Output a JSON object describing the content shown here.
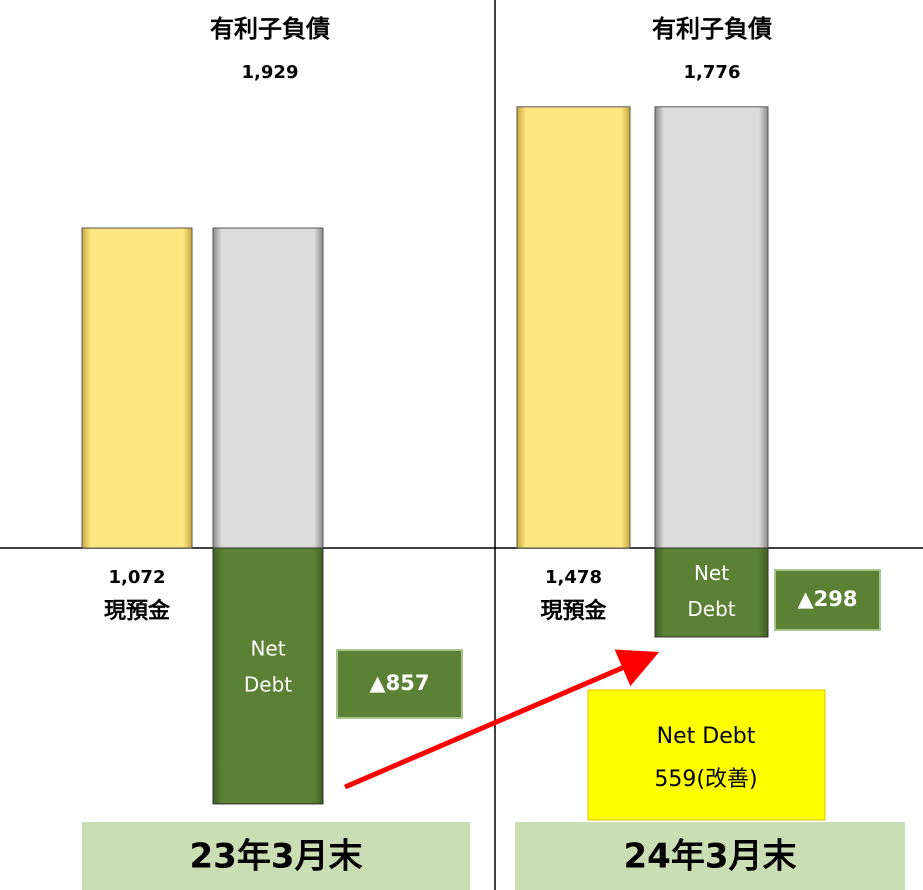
{
  "chart_data": [
    {
      "type": "net-debt",
      "title": "23年3月末",
      "debt_label": "有利子負債",
      "debt": 1929,
      "debt_value_label": "1,929",
      "cash": 1072,
      "cash_value_label": "1,072",
      "cash_label": "現預金",
      "net_debt_label": [
        "Net",
        "Debt"
      ],
      "net_debt": 857,
      "net_debt_value_label": "▲857"
    },
    {
      "type": "net-debt",
      "title": "24年3月末",
      "debt_label": "有利子負債",
      "debt": 1776,
      "debt_value_label": "1,776",
      "cash": 1478,
      "cash_value_label": "1,478",
      "cash_label": "現預金",
      "net_debt_label": [
        "Net",
        "Debt"
      ],
      "net_debt": 298,
      "net_debt_value_label": "▲298"
    }
  ],
  "annotation": {
    "lines": [
      "Net Debt",
      "559(改善)"
    ]
  }
}
